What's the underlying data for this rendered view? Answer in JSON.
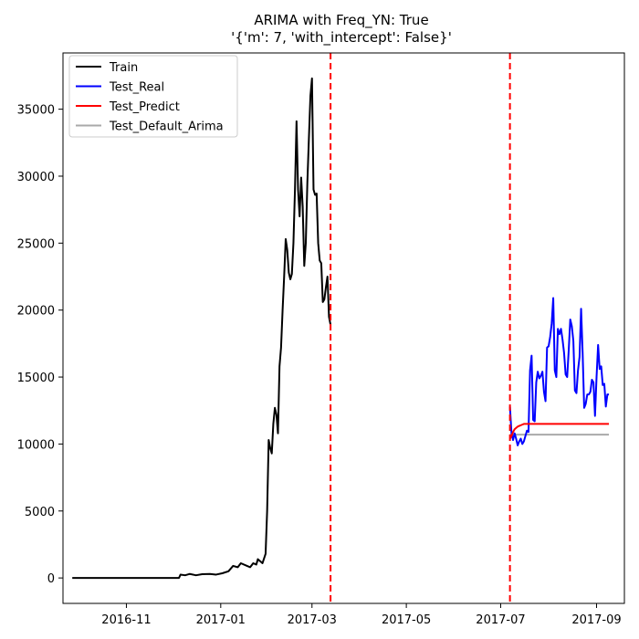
{
  "chart_data": {
    "type": "line",
    "title_line1": "ARIMA with Freq_YN: True",
    "title_line2": "'{'m': 7, 'with_intercept': False}'",
    "xlabel": "",
    "ylabel": "",
    "x_tick_labels": [
      "2016-11",
      "2017-01",
      "2017-03",
      "2017-05",
      "2017-07",
      "2017-09"
    ],
    "x_tick_dates": [
      "2016-11-01",
      "2017-01-01",
      "2017-03-01",
      "2017-05-01",
      "2017-07-01",
      "2017-09-01"
    ],
    "y_ticks": [
      0,
      5000,
      10000,
      15000,
      20000,
      25000,
      30000,
      35000
    ],
    "xlim": [
      "2016-09-21",
      "2017-09-19"
    ],
    "ylim": [
      -1900,
      39200
    ],
    "grid": false,
    "legend_placement": "upper-left",
    "vlines": [
      {
        "date": "2017-03-13",
        "color": "#ff0000",
        "style": "dashed"
      },
      {
        "date": "2017-07-07",
        "color": "#ff0000",
        "style": "dashed"
      }
    ],
    "series": [
      {
        "name": "Train",
        "color": "#000000",
        "points": [
          [
            "2016-09-27",
            0
          ],
          [
            "2016-10-15",
            0
          ],
          [
            "2016-11-01",
            0
          ],
          [
            "2016-11-15",
            0
          ],
          [
            "2016-12-01",
            0
          ],
          [
            "2016-12-05",
            0
          ],
          [
            "2016-12-06",
            250
          ],
          [
            "2016-12-09",
            200
          ],
          [
            "2016-12-12",
            300
          ],
          [
            "2016-12-16",
            200
          ],
          [
            "2016-12-20",
            280
          ],
          [
            "2016-12-25",
            300
          ],
          [
            "2016-12-29",
            250
          ],
          [
            "2017-01-02",
            350
          ],
          [
            "2017-01-06",
            500
          ],
          [
            "2017-01-09",
            900
          ],
          [
            "2017-01-12",
            800
          ],
          [
            "2017-01-14",
            1100
          ],
          [
            "2017-01-18",
            900
          ],
          [
            "2017-01-20",
            800
          ],
          [
            "2017-01-22",
            1100
          ],
          [
            "2017-01-24",
            1000
          ],
          [
            "2017-01-25",
            1400
          ],
          [
            "2017-01-27",
            1200
          ],
          [
            "2017-01-28",
            1100
          ],
          [
            "2017-01-30",
            1800
          ],
          [
            "2017-01-31",
            5000
          ],
          [
            "2017-02-01",
            10300
          ],
          [
            "2017-02-02",
            9700
          ],
          [
            "2017-02-03",
            9300
          ],
          [
            "2017-02-04",
            11500
          ],
          [
            "2017-02-05",
            12700
          ],
          [
            "2017-02-06",
            12200
          ],
          [
            "2017-02-07",
            10800
          ],
          [
            "2017-02-08",
            15800
          ],
          [
            "2017-02-09",
            17200
          ],
          [
            "2017-02-10",
            20000
          ],
          [
            "2017-02-11",
            22500
          ],
          [
            "2017-02-12",
            25300
          ],
          [
            "2017-02-13",
            24500
          ],
          [
            "2017-02-14",
            22800
          ],
          [
            "2017-02-15",
            22300
          ],
          [
            "2017-02-16",
            22700
          ],
          [
            "2017-02-17",
            25000
          ],
          [
            "2017-02-18",
            29000
          ],
          [
            "2017-02-19",
            34100
          ],
          [
            "2017-02-20",
            29000
          ],
          [
            "2017-02-21",
            27000
          ],
          [
            "2017-02-22",
            29900
          ],
          [
            "2017-02-23",
            27700
          ],
          [
            "2017-02-24",
            23300
          ],
          [
            "2017-02-25",
            25000
          ],
          [
            "2017-02-26",
            29500
          ],
          [
            "2017-02-27",
            32800
          ],
          [
            "2017-02-28",
            36000
          ],
          [
            "2017-03-01",
            37300
          ],
          [
            "2017-03-02",
            29000
          ],
          [
            "2017-03-03",
            28600
          ],
          [
            "2017-03-04",
            28700
          ],
          [
            "2017-03-05",
            25000
          ],
          [
            "2017-03-06",
            23700
          ],
          [
            "2017-03-07",
            23500
          ],
          [
            "2017-03-08",
            20600
          ],
          [
            "2017-03-09",
            20800
          ],
          [
            "2017-03-10",
            21700
          ],
          [
            "2017-03-11",
            22500
          ],
          [
            "2017-03-12",
            19500
          ],
          [
            "2017-03-13",
            18900
          ]
        ]
      },
      {
        "name": "Test_Real",
        "color": "#0000ff",
        "points": [
          [
            "2017-07-07",
            12800
          ],
          [
            "2017-07-08",
            10800
          ],
          [
            "2017-07-09",
            10300
          ],
          [
            "2017-07-10",
            10800
          ],
          [
            "2017-07-11",
            10400
          ],
          [
            "2017-07-12",
            9900
          ],
          [
            "2017-07-13",
            10200
          ],
          [
            "2017-07-14",
            10400
          ],
          [
            "2017-07-15",
            10000
          ],
          [
            "2017-07-16",
            10200
          ],
          [
            "2017-07-17",
            10600
          ],
          [
            "2017-07-18",
            11000
          ],
          [
            "2017-07-19",
            10900
          ],
          [
            "2017-07-20",
            15500
          ],
          [
            "2017-07-21",
            16600
          ],
          [
            "2017-07-22",
            11800
          ],
          [
            "2017-07-23",
            11700
          ],
          [
            "2017-07-24",
            14600
          ],
          [
            "2017-07-25",
            15400
          ],
          [
            "2017-07-26",
            14900
          ],
          [
            "2017-07-27",
            15100
          ],
          [
            "2017-07-28",
            15400
          ],
          [
            "2017-07-29",
            13900
          ],
          [
            "2017-07-30",
            13200
          ],
          [
            "2017-07-31",
            17200
          ],
          [
            "2017-08-01",
            17300
          ],
          [
            "2017-08-02",
            18000
          ],
          [
            "2017-08-03",
            19000
          ],
          [
            "2017-08-04",
            20900
          ],
          [
            "2017-08-05",
            15500
          ],
          [
            "2017-08-06",
            15000
          ],
          [
            "2017-08-07",
            18600
          ],
          [
            "2017-08-08",
            18200
          ],
          [
            "2017-08-09",
            18600
          ],
          [
            "2017-08-10",
            17800
          ],
          [
            "2017-08-11",
            16800
          ],
          [
            "2017-08-12",
            15200
          ],
          [
            "2017-08-13",
            15000
          ],
          [
            "2017-08-14",
            17000
          ],
          [
            "2017-08-15",
            19300
          ],
          [
            "2017-08-16",
            18800
          ],
          [
            "2017-08-17",
            17700
          ],
          [
            "2017-08-18",
            14000
          ],
          [
            "2017-08-19",
            13800
          ],
          [
            "2017-08-20",
            15500
          ],
          [
            "2017-08-21",
            16500
          ],
          [
            "2017-08-22",
            20100
          ],
          [
            "2017-08-23",
            16800
          ],
          [
            "2017-08-24",
            12700
          ],
          [
            "2017-08-25",
            13000
          ],
          [
            "2017-08-26",
            13700
          ],
          [
            "2017-08-27",
            13700
          ],
          [
            "2017-08-28",
            13900
          ],
          [
            "2017-08-29",
            14800
          ],
          [
            "2017-08-30",
            14600
          ],
          [
            "2017-08-31",
            12100
          ],
          [
            "2017-09-01",
            15000
          ],
          [
            "2017-09-02",
            17400
          ],
          [
            "2017-09-03",
            15600
          ],
          [
            "2017-09-04",
            15800
          ],
          [
            "2017-09-05",
            14400
          ],
          [
            "2017-09-06",
            14500
          ],
          [
            "2017-09-07",
            12800
          ],
          [
            "2017-09-08",
            13700
          ],
          [
            "2017-09-09",
            13700
          ]
        ]
      },
      {
        "name": "Test_Predict",
        "color": "#ff0000",
        "points": [
          [
            "2017-07-07",
            10400
          ],
          [
            "2017-07-08",
            10600
          ],
          [
            "2017-07-09",
            10900
          ],
          [
            "2017-07-10",
            11100
          ],
          [
            "2017-07-11",
            11200
          ],
          [
            "2017-07-12",
            11300
          ],
          [
            "2017-07-13",
            11350
          ],
          [
            "2017-07-14",
            11400
          ],
          [
            "2017-07-15",
            11450
          ],
          [
            "2017-07-16",
            11500
          ],
          [
            "2017-07-18",
            11500
          ],
          [
            "2017-07-25",
            11500
          ],
          [
            "2017-08-01",
            11500
          ],
          [
            "2017-08-15",
            11500
          ],
          [
            "2017-09-01",
            11500
          ],
          [
            "2017-09-09",
            11500
          ]
        ]
      },
      {
        "name": "Test_Default_Arima",
        "color": "#a9a9a9",
        "points": [
          [
            "2017-07-07",
            10700
          ],
          [
            "2017-07-15",
            10700
          ],
          [
            "2017-08-01",
            10700
          ],
          [
            "2017-08-15",
            10700
          ],
          [
            "2017-09-01",
            10700
          ],
          [
            "2017-09-09",
            10700
          ]
        ]
      }
    ]
  }
}
